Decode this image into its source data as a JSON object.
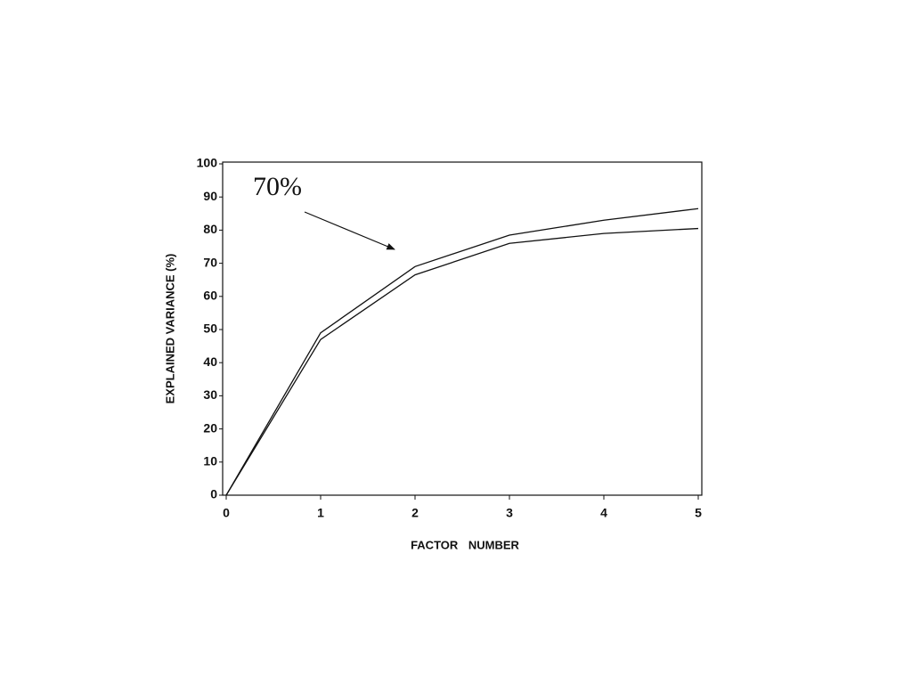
{
  "chart_data": {
    "type": "line",
    "x": [
      0,
      1,
      2,
      3,
      4,
      5
    ],
    "series": [
      {
        "color": "#111111",
        "values": [
          0,
          49,
          69,
          78.5,
          83,
          86.5
        ]
      },
      {
        "color": "#111111",
        "values": [
          0,
          47,
          66.5,
          76,
          79,
          80.5
        ]
      }
    ],
    "xlabel": "FACTOR NUMBER",
    "ylabel": "EXPLAINED VARIANCE (%)",
    "annotation": "70%",
    "xlim": [
      0,
      5
    ],
    "xticks": [
      0,
      1,
      2,
      3,
      4,
      5
    ],
    "ylim": [
      0,
      100
    ],
    "yticks": [
      0,
      10,
      20,
      30,
      40,
      50,
      60,
      70,
      80,
      90,
      100
    ],
    "grid": false
  }
}
